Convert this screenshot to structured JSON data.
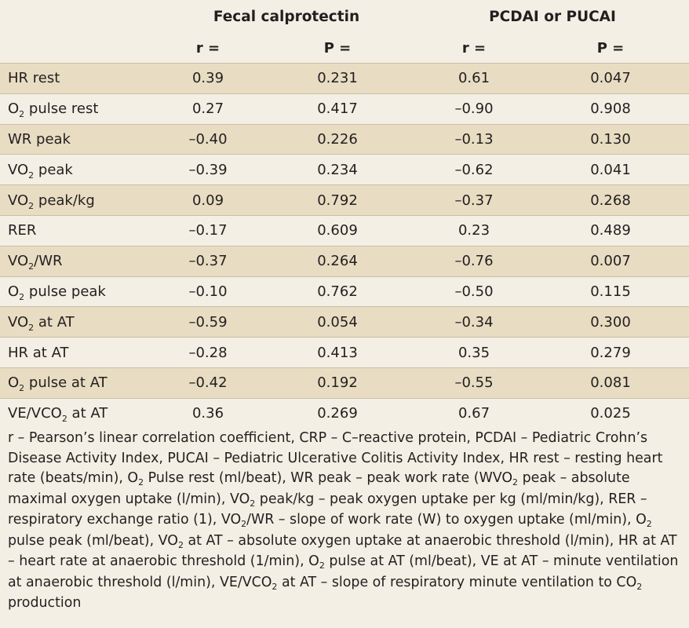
{
  "table": {
    "group_headers": [
      "",
      "Fecal calprotectin",
      "PCDAI or PUCAI"
    ],
    "sub_headers": [
      "",
      "r =",
      "P =",
      "r =",
      "P ="
    ],
    "rows": [
      {
        "label_main": "HR rest",
        "label_sub": "",
        "label_tail": "",
        "values": [
          "0.39",
          "0.231",
          "0.61",
          "0.047"
        ]
      },
      {
        "label_main": "O",
        "label_sub": "2",
        "label_tail": " pulse rest",
        "values": [
          "0.27",
          "0.417",
          "–0.90",
          "0.908"
        ]
      },
      {
        "label_main": "WR peak",
        "label_sub": "",
        "label_tail": "",
        "values": [
          "–0.40",
          "0.226",
          "–0.13",
          "0.130"
        ]
      },
      {
        "label_main": "VO",
        "label_sub": "2",
        "label_tail": " peak",
        "values": [
          "–0.39",
          "0.234",
          "–0.62",
          "0.041"
        ]
      },
      {
        "label_main": "VO",
        "label_sub": "2",
        "label_tail": " peak/kg",
        "values": [
          "0.09",
          "0.792",
          "–0.37",
          "0.268"
        ]
      },
      {
        "label_main": "RER",
        "label_sub": "",
        "label_tail": "",
        "values": [
          "–0.17",
          "0.609",
          "0.23",
          "0.489"
        ]
      },
      {
        "label_main": "VO",
        "label_sub": "2",
        "label_tail": "/WR",
        "values": [
          "–0.37",
          "0.264",
          "–0.76",
          "0.007"
        ]
      },
      {
        "label_main": "O",
        "label_sub": "2",
        "label_tail": " pulse peak",
        "values": [
          "–0.10",
          "0.762",
          "–0.50",
          "0.115"
        ]
      },
      {
        "label_main": "VO",
        "label_sub": "2",
        "label_tail": " at AT",
        "values": [
          "–0.59",
          "0.054",
          "–0.34",
          "0.300"
        ]
      },
      {
        "label_main": "HR at AT",
        "label_sub": "",
        "label_tail": "",
        "values": [
          "–0.28",
          "0.413",
          "0.35",
          "0.279"
        ]
      },
      {
        "label_main": "O",
        "label_sub": "2",
        "label_tail": " pulse at AT",
        "values": [
          "–0.42",
          "0.192",
          "–0.55",
          "0.081"
        ]
      },
      {
        "label_main": "VE/VCO",
        "label_sub": "2",
        "label_tail": " at AT",
        "values": [
          "0.36",
          "0.269",
          "0.67",
          "0.025"
        ]
      }
    ]
  },
  "footnote": [
    {
      "t": "r – Pearson’s linear correlation coefficient, CRP – C–reactive protein, PCDAI – Pediatric Crohn’s Disease Activity Index, PUCAI – Pediatric Ulcerative Colitis Activity Index, HR rest – resting heart rate (beats/min), O"
    },
    {
      "t": "2",
      "sub": true
    },
    {
      "t": " Pulse rest (ml/beat), WR peak – peak work rate (WVO"
    },
    {
      "t": "2",
      "sub": true
    },
    {
      "t": " peak – absolute maximal oxygen uptake (l/min), VO"
    },
    {
      "t": "2",
      "sub": true
    },
    {
      "t": " peak/kg – peak oxygen uptake per kg (ml/min/kg), RER – respiratory exchange ratio (1), VO"
    },
    {
      "t": "2",
      "sub": true
    },
    {
      "t": "/WR – slope of work rate (W) to oxygen uptake (ml/min), O"
    },
    {
      "t": "2",
      "sub": true
    },
    {
      "t": " pulse peak (ml/beat), VO"
    },
    {
      "t": "2",
      "sub": true
    },
    {
      "t": " at AT – absolute oxygen uptake at anaerobic threshold (l/min), HR at AT – heart rate at anaerobic threshold (1/min), O"
    },
    {
      "t": "2",
      "sub": true
    },
    {
      "t": " pulse at AT (ml/beat), VE at AT – minute ventilation at anaerobic threshold (l/min), VE/VCO"
    },
    {
      "t": "2",
      "sub": true
    },
    {
      "t": " at AT – slope of respiratory minute ventilation to CO"
    },
    {
      "t": "2",
      "sub": true
    },
    {
      "t": " production"
    }
  ]
}
